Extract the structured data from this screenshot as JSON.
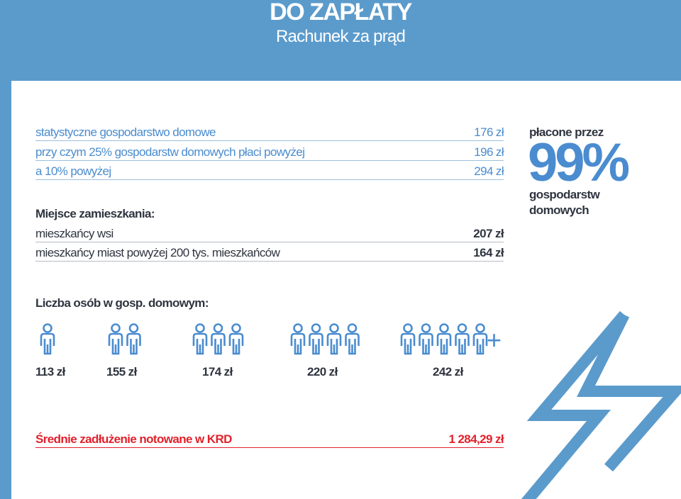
{
  "header": {
    "title": "DO ZAPŁATY",
    "subtitle": "Rachunek za prąd"
  },
  "household_rows": [
    {
      "label": "statystyczne gospodarstwo domowe",
      "value": "176 zł"
    },
    {
      "label": "przy czym 25% gospodarstw domowych płaci powyżej",
      "value": "196 zł"
    },
    {
      "label": "a 10% powyżej",
      "value": "294 zł"
    }
  ],
  "residence": {
    "title": "Miejsce zamieszkania:",
    "rows": [
      {
        "label": "mieszkańcy wsi",
        "value": "207 zł"
      },
      {
        "label": "mieszkańcy miast powyżej 200 tys. mieszkańców",
        "value": "164 zł"
      }
    ]
  },
  "side_stat": {
    "top": "płacone przez",
    "percent": "99%",
    "bottom": "gospodarstw domowych"
  },
  "persons": {
    "title": "Liczba osób w gosp. domowym:",
    "groups": [
      {
        "count": 1,
        "price": "113 zł"
      },
      {
        "count": 2,
        "price": "155 zł"
      },
      {
        "count": 3,
        "price": "174 zł"
      },
      {
        "count": 4,
        "price": "220 zł"
      },
      {
        "count": 5,
        "price": "242 zł"
      }
    ],
    "plus": "+"
  },
  "debt": {
    "label": "Średnie zadłużenie notowane w KRD",
    "value": "1 284,29 zł"
  },
  "colors": {
    "accent_blue": "#5b9bcc",
    "text_blue": "#4a8ccf",
    "text_dark": "#2f3540",
    "debt_red": "#e2212b"
  },
  "icons": {
    "person": "person-icon",
    "bolt": "lightning-bolt-icon"
  }
}
